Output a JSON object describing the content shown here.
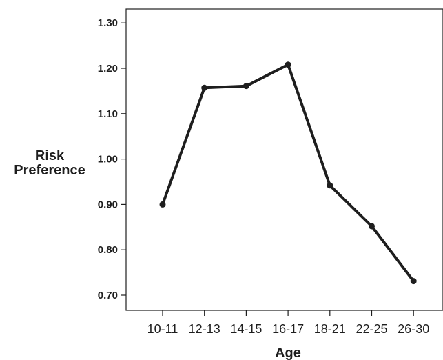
{
  "chart_data": {
    "type": "line",
    "title": "",
    "xlabel": "Age",
    "ylabel_lines": [
      "Risk",
      "Preference"
    ],
    "categories": [
      "10-11",
      "12-13",
      "14-15",
      "16-17",
      "18-21",
      "22-25",
      "26-30"
    ],
    "series": [
      {
        "values": [
          0.9,
          1.157,
          1.161,
          1.208,
          0.942,
          0.852,
          0.731
        ]
      }
    ],
    "ylim": [
      0.68,
      1.33
    ],
    "yticks": [
      "0.70",
      "0.80",
      "0.90",
      "1.00",
      "1.10",
      "1.20",
      "1.30"
    ],
    "grid": false,
    "legend": "none",
    "line_color": "#1e1e1e"
  }
}
